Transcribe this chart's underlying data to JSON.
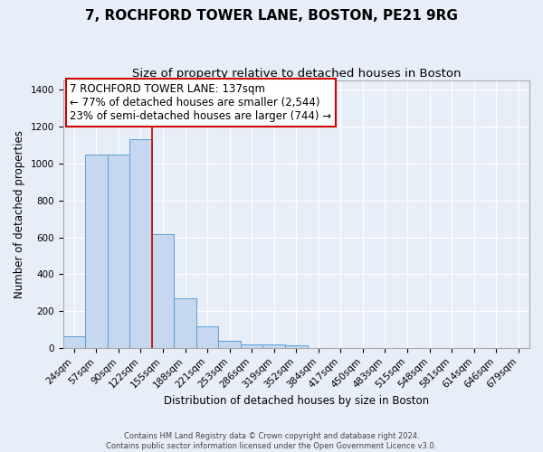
{
  "title": "7, ROCHFORD TOWER LANE, BOSTON, PE21 9RG",
  "subtitle": "Size of property relative to detached houses in Boston",
  "xlabel": "Distribution of detached houses by size in Boston",
  "ylabel": "Number of detached properties",
  "bar_color": "#c5d8f0",
  "bar_edge_color": "#5a9fd4",
  "background_color": "#e8eef8",
  "grid_color": "#ffffff",
  "bins": [
    "24sqm",
    "57sqm",
    "90sqm",
    "122sqm",
    "155sqm",
    "188sqm",
    "221sqm",
    "253sqm",
    "286sqm",
    "319sqm",
    "352sqm",
    "384sqm",
    "417sqm",
    "450sqm",
    "483sqm",
    "515sqm",
    "548sqm",
    "581sqm",
    "614sqm",
    "646sqm",
    "679sqm"
  ],
  "values": [
    65,
    1050,
    1050,
    1130,
    615,
    270,
    115,
    40,
    20,
    20,
    15,
    0,
    0,
    0,
    0,
    0,
    0,
    0,
    0,
    0,
    0
  ],
  "n_bins": 21,
  "red_line_bin_index": 4,
  "ylim": [
    0,
    1450
  ],
  "annotation_text": "7 ROCHFORD TOWER LANE: 137sqm\n← 77% of detached houses are smaller (2,544)\n23% of semi-detached houses are larger (744) →",
  "annotation_box_color": "#ffffff",
  "annotation_box_edge_color": "#cc0000",
  "red_line_color": "#cc0000",
  "footer_text": "Contains HM Land Registry data © Crown copyright and database right 2024.\nContains public sector information licensed under the Open Government Licence v3.0.",
  "title_fontsize": 11,
  "subtitle_fontsize": 9.5,
  "annotation_fontsize": 8.5,
  "tick_fontsize": 7.5,
  "ylabel_fontsize": 8.5,
  "xlabel_fontsize": 8.5
}
